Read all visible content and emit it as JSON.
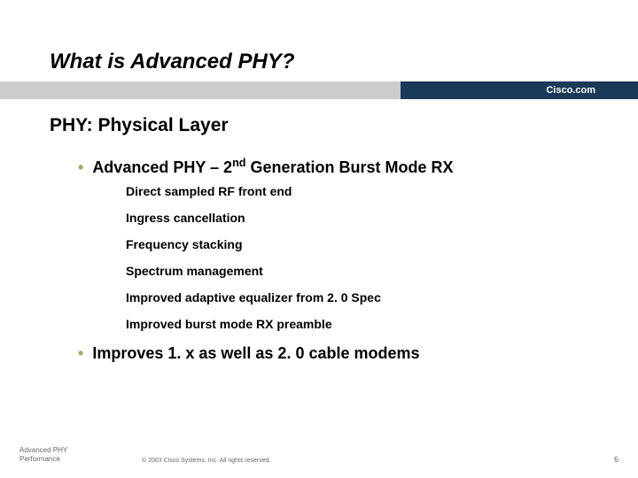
{
  "title": "What is Advanced PHY?",
  "brand": "Cisco.com",
  "subtitle": "PHY: Physical Layer",
  "bullets": [
    {
      "text_pre": "Advanced PHY – 2",
      "sup": "nd",
      "text_post": " Generation Burst Mode RX",
      "sub": [
        "Direct sampled RF front end",
        "Ingress cancellation",
        "Frequency stacking",
        "Spectrum management",
        "Improved adaptive equalizer from 2. 0 Spec",
        "Improved burst mode RX preamble"
      ]
    },
    {
      "text_pre": "Improves 1. x as well as 2. 0 cable modems",
      "sup": "",
      "text_post": "",
      "sub": []
    }
  ],
  "footer": {
    "tag_line1": "Advanced PHY",
    "tag_line2": "Performance",
    "copyright": "© 2003 Cisco Systems, Inc. All rights reserved.",
    "page": "6"
  },
  "colors": {
    "bar_gray": "#cccccc",
    "bar_navy": "#1a3a5a",
    "bullet_dot": "#9fa860",
    "text": "#000000",
    "footer_text": "#666666",
    "background": "#ffffff"
  },
  "typography": {
    "title_fontsize": 24,
    "subtitle_fontsize": 21,
    "bullet_fontsize": 18,
    "sub_fontsize": 14,
    "footer_fontsize": 8
  }
}
